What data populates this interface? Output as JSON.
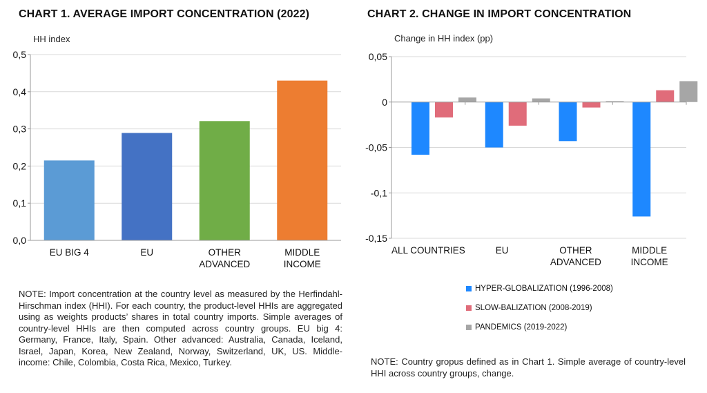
{
  "chart_data": [
    {
      "type": "bar",
      "title": "CHART 1. AVERAGE IMPORT CONCENTRATION  (2022)",
      "ylabel": "HH index",
      "categories": [
        "EU BIG 4",
        "EU",
        "OTHER ADVANCED",
        "MIDDLE INCOME"
      ],
      "category_lines": [
        [
          "EU BIG 4"
        ],
        [
          "EU"
        ],
        [
          "OTHER",
          "ADVANCED"
        ],
        [
          "MIDDLE",
          "INCOME"
        ]
      ],
      "values": [
        0.215,
        0.289,
        0.321,
        0.43
      ],
      "colors": [
        "#5B9BD5",
        "#4472C4",
        "#70AD47",
        "#ED7D31"
      ],
      "ylim": [
        0,
        0.5
      ],
      "yticks": [
        0,
        0.1,
        0.2,
        0.3,
        0.4,
        0.5
      ],
      "ytick_labels": [
        "0,0",
        "0,1",
        "0,2",
        "0,3",
        "0,4",
        "0,5"
      ],
      "grid": true
    },
    {
      "type": "bar",
      "title": "CHART 2. CHANGE IN IMPORT CONCENTRATION",
      "ylabel": "Change in HH index (pp)",
      "categories": [
        "ALL COUNTRIES",
        "EU",
        "OTHER ADVANCED",
        "MIDDLE INCOME"
      ],
      "category_lines": [
        [
          "ALL COUNTRIES"
        ],
        [
          "EU"
        ],
        [
          "OTHER",
          "ADVANCED"
        ],
        [
          "MIDDLE",
          "INCOME"
        ]
      ],
      "series": [
        {
          "name": "HYPER-GLOBALIZATION (1996-2008)",
          "color": "#1E88FF",
          "values": [
            -0.058,
            -0.05,
            -0.043,
            -0.126
          ]
        },
        {
          "name": "SLOW-BALIZATION (2008-2019)",
          "color": "#E06C7A",
          "values": [
            -0.017,
            -0.026,
            -0.006,
            0.013
          ]
        },
        {
          "name": "PANDEMICS (2019-2022)",
          "color": "#A6A6A6",
          "values": [
            0.005,
            0.004,
            0.001,
            0.023
          ]
        }
      ],
      "ylim": [
        -0.15,
        0.05
      ],
      "yticks": [
        -0.15,
        -0.1,
        -0.05,
        0,
        0.05
      ],
      "ytick_labels": [
        "-0,15",
        "-0,1",
        "-0,05",
        "0",
        "0,05"
      ],
      "grid": true,
      "legend_position": "bottom"
    }
  ],
  "notes": {
    "chart1": "NOTE: Import concentration at the country level as measured by the Herfindahl-Hirschman index (HHI). For each country, the product-level HHIs are aggregated using as weights products’ shares in total country imports. Simple averages of country-level HHIs are then computed across country groups. EU big 4: Germany, France, Italy, Spain. Other advanced: Australia, Canada, Iceland, Israel, Japan, Korea, New Zealand, Norway, Switzerland, UK, US. Middle-income: Chile, Colombia, Costa Rica, Mexico, Turkey.",
    "chart2": "NOTE: Country gropus defined as in Chart 1. Simple average of country-level HHI across country groups, change."
  }
}
